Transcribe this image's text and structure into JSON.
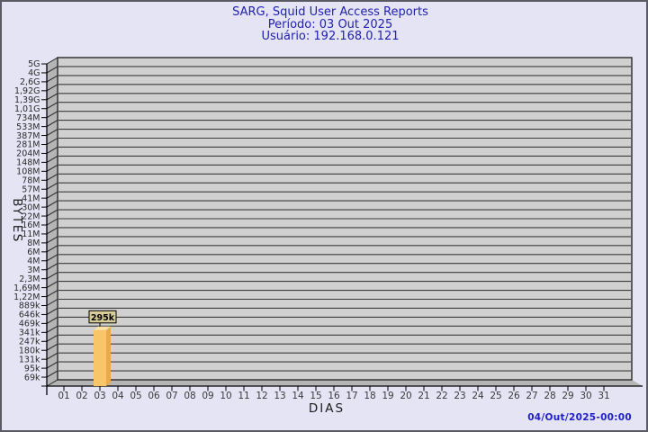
{
  "header": {
    "title": "SARG, Squid User Access Reports",
    "period_label": "Período: 03 Out 2025",
    "user_label": "Usuário: 192.168.0.121"
  },
  "footer": {
    "generated_at": "04/Out/2025-00:00"
  },
  "chart_data": {
    "type": "bar",
    "title": "SARG, Squid User Access Reports",
    "subtitle_period": "Período: 03 Out 2025",
    "subtitle_user": "Usuário: 192.168.0.121",
    "xlabel": "DIAS",
    "ylabel": "BYTES",
    "scale": "log",
    "grid": true,
    "legend": null,
    "categories": [
      "01",
      "02",
      "03",
      "04",
      "05",
      "06",
      "07",
      "08",
      "09",
      "10",
      "11",
      "12",
      "13",
      "14",
      "15",
      "16",
      "17",
      "18",
      "19",
      "20",
      "21",
      "22",
      "23",
      "24",
      "25",
      "26",
      "27",
      "28",
      "29",
      "30",
      "31"
    ],
    "values": [
      0,
      0,
      295000,
      0,
      0,
      0,
      0,
      0,
      0,
      0,
      0,
      0,
      0,
      0,
      0,
      0,
      0,
      0,
      0,
      0,
      0,
      0,
      0,
      0,
      0,
      0,
      0,
      0,
      0,
      0,
      0
    ],
    "bar_display_labels": {
      "03": "295k"
    },
    "y_tick_labels": [
      "5G",
      "4G",
      "2,6G",
      "1,92G",
      "1,39G",
      "1,01G",
      "734M",
      "533M",
      "387M",
      "281M",
      "204M",
      "148M",
      "108M",
      "78M",
      "57M",
      "41M",
      "30M",
      "22M",
      "16M",
      "11M",
      "8M",
      "6M",
      "4M",
      "3M",
      "2,3M",
      "1,69M",
      "1,22M",
      "889k",
      "646k",
      "469k",
      "341k",
      "247k",
      "180k",
      "131k",
      "95k",
      "69k"
    ]
  },
  "colors": {
    "page_bg": "#E4E4F4",
    "frame_border": "#5a5a64",
    "title_text": "#2121AE",
    "timestamp_text": "#2020C4",
    "plot_bg": "#D0D0D0",
    "wall": "#B5B5B5",
    "gridline": "#3C3C3C",
    "plot_border": "#2A2A2A",
    "axis": "#000000",
    "tick_text": "#2B2B2B",
    "bar_front": "#FAC468",
    "bar_side": "#E9A94E",
    "bar_top": "#FCE2A4",
    "value_box_bg": "#D7CD97",
    "value_box_border": "#000000",
    "value_text": "#000000"
  }
}
